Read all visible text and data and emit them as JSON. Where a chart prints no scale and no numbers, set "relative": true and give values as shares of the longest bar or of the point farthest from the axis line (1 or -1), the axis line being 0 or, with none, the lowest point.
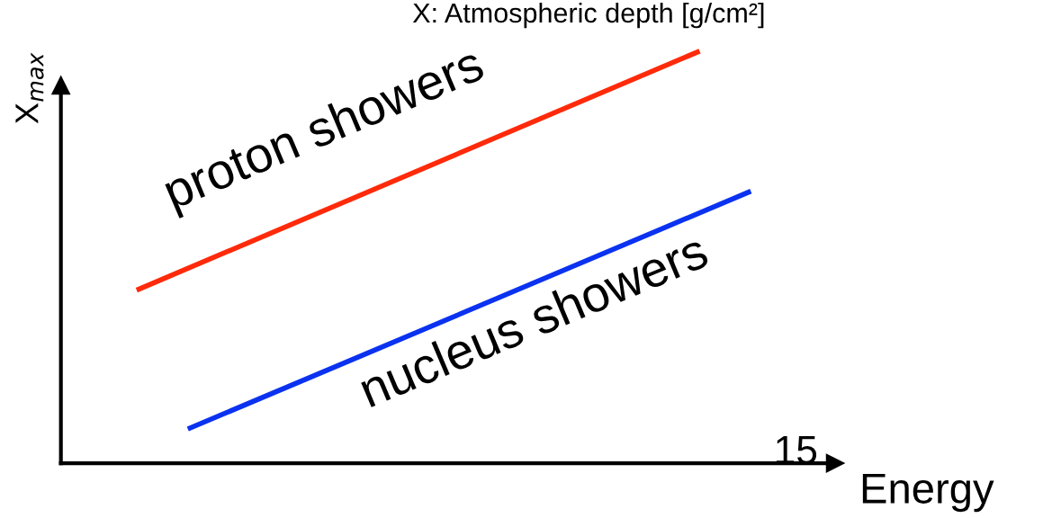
{
  "chart_data": {
    "type": "line",
    "relative": true,
    "title": "X: Atmospheric depth [g/cm²]",
    "xlabel": "Energy",
    "ylabel": "X$_{max}$",
    "annotations": [
      "15"
    ],
    "categories": [
      null,
      null,
      null,
      null,
      null,
      null,
      null,
      null,
      null,
      null,
      null,
      null,
      null
    ],
    "series": [
      {
        "name": "proton showers",
        "color": "#ff2a0a",
        "values": [
          0.42,
          null,
          null,
          null,
          null,
          null,
          null,
          null,
          null,
          null,
          null,
          1,
          null
        ]
      },
      {
        "name": "nucleus showers",
        "color": "#0a32f0",
        "values": [
          null,
          0.083,
          null,
          null,
          null,
          null,
          null,
          null,
          null,
          null,
          null,
          null,
          0.66
        ]
      }
    ],
    "legend": false,
    "marker": "none",
    "line_style": "solid"
  }
}
